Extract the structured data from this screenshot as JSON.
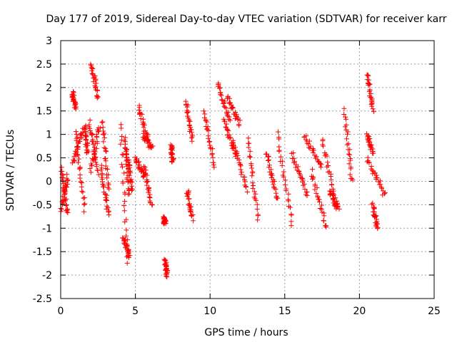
{
  "chart_data": {
    "type": "scatter",
    "title": "Day 177 of 2019, Sidereal Day-to-day VTEC variation (SDTVAR) for receiver karr",
    "xlabel": "GPS time / hours",
    "ylabel": "SDTVAR / TECUs",
    "xlim": [
      0,
      25
    ],
    "ylim": [
      -2.5,
      3
    ],
    "xticks": [
      0,
      5,
      10,
      15,
      20,
      25
    ],
    "yticks": [
      -2.5,
      -2,
      -1.5,
      -1,
      -0.5,
      0,
      0.5,
      1,
      1.5,
      2,
      2.5,
      3
    ],
    "xtick_labels": [
      "0",
      "5",
      "10",
      "15",
      "20",
      "25"
    ],
    "ytick_labels": [
      "-2.5",
      "-2",
      "-1.5",
      "-1",
      "-0.5",
      "0",
      "0.5",
      "1",
      "1.5",
      "2",
      "2.5",
      "3"
    ],
    "grid": true,
    "marker": "+",
    "marker_color": "#ff0000",
    "series": [
      {
        "name": "SDTVAR",
        "segments": [
          {
            "x": [
              0.05,
              0.45
            ],
            "y": [
              0.3,
              -0.7
            ]
          },
          {
            "x": [
              0.05,
              0.45
            ],
            "y": [
              -0.6,
              0.1
            ]
          },
          {
            "x": [
              0.8,
              1.0
            ],
            "y": [
              1.9,
              1.6
            ]
          },
          {
            "x": [
              0.8,
              1.5
            ],
            "y": [
              0.4,
              1.1
            ]
          },
          {
            "x": [
              1.0,
              1.6
            ],
            "y": [
              1.1,
              -0.6
            ]
          },
          {
            "x": [
              1.6,
              1.8
            ],
            "y": [
              1.2,
              0.6
            ]
          },
          {
            "x": [
              2.05,
              2.5
            ],
            "y": [
              2.5,
              1.8
            ]
          },
          {
            "x": [
              1.9,
              2.5
            ],
            "y": [
              1.3,
              0.2
            ]
          },
          {
            "x": [
              2.0,
              2.6
            ],
            "y": [
              0.2,
              1.2
            ]
          },
          {
            "x": [
              2.8,
              3.2
            ],
            "y": [
              1.3,
              -0.2
            ]
          },
          {
            "x": [
              2.7,
              3.2
            ],
            "y": [
              0.3,
              -0.7
            ]
          },
          {
            "x": [
              4.0,
              4.5
            ],
            "y": [
              1.2,
              -1.7
            ]
          },
          {
            "x": [
              4.2,
              4.6
            ],
            "y": [
              -1.2,
              -1.6
            ]
          },
          {
            "x": [
              4.3,
              4.6
            ],
            "y": [
              0.9,
              -0.3
            ]
          },
          {
            "x": [
              4.4,
              4.8
            ],
            "y": [
              0.7,
              -0.2
            ]
          },
          {
            "x": [
              5.2,
              5.9
            ],
            "y": [
              1.6,
              0.8
            ]
          },
          {
            "x": [
              5.5,
              6.1
            ],
            "y": [
              1.0,
              0.7
            ]
          },
          {
            "x": [
              5.0,
              5.6
            ],
            "y": [
              0.5,
              0.1
            ]
          },
          {
            "x": [
              5.6,
              6.1
            ],
            "y": [
              0.3,
              -0.5
            ]
          },
          {
            "x": [
              6.9,
              7.0
            ],
            "y": [
              -0.8,
              -0.9
            ]
          },
          {
            "x": [
              7.0,
              7.1
            ],
            "y": [
              -1.7,
              -2.0
            ]
          },
          {
            "x": [
              7.4,
              7.5
            ],
            "y": [
              0.8,
              0.4
            ]
          },
          {
            "x": [
              8.4,
              8.8
            ],
            "y": [
              1.7,
              0.9
            ]
          },
          {
            "x": [
              8.5,
              8.8
            ],
            "y": [
              -0.2,
              -0.8
            ]
          },
          {
            "x": [
              9.6,
              10.3
            ],
            "y": [
              1.5,
              0.3
            ]
          },
          {
            "x": [
              10.5,
              11.3
            ],
            "y": [
              2.1,
              1.3
            ]
          },
          {
            "x": [
              11.2,
              12.0
            ],
            "y": [
              1.8,
              1.2
            ]
          },
          {
            "x": [
              10.9,
              11.8
            ],
            "y": [
              1.3,
              0.5
            ]
          },
          {
            "x": [
              11.5,
              12.5
            ],
            "y": [
              0.9,
              -0.2
            ]
          },
          {
            "x": [
              12.5,
              13.2
            ],
            "y": [
              0.9,
              -0.8
            ]
          },
          {
            "x": [
              13.8,
              14.5
            ],
            "y": [
              0.6,
              -0.4
            ]
          },
          {
            "x": [
              14.5,
              15.5
            ],
            "y": [
              1.0,
              -0.9
            ]
          },
          {
            "x": [
              15.5,
              16.5
            ],
            "y": [
              0.6,
              -0.3
            ]
          },
          {
            "x": [
              16.3,
              17.5
            ],
            "y": [
              1.0,
              0.3
            ]
          },
          {
            "x": [
              16.8,
              17.8
            ],
            "y": [
              0.2,
              -1.0
            ]
          },
          {
            "x": [
              17.5,
              18.5
            ],
            "y": [
              0.9,
              -0.6
            ]
          },
          {
            "x": [
              18.0,
              18.6
            ],
            "y": [
              -0.2,
              -0.6
            ]
          },
          {
            "x": [
              19.0,
              19.5
            ],
            "y": [
              1.5,
              0.0
            ]
          },
          {
            "x": [
              20.5,
              20.9
            ],
            "y": [
              2.3,
              1.5
            ]
          },
          {
            "x": [
              20.5,
              20.9
            ],
            "y": [
              1.0,
              0.6
            ]
          },
          {
            "x": [
              20.5,
              21.7
            ],
            "y": [
              0.5,
              -0.3
            ]
          },
          {
            "x": [
              20.9,
              21.2
            ],
            "y": [
              -0.5,
              -1.0
            ]
          }
        ]
      }
    ]
  }
}
